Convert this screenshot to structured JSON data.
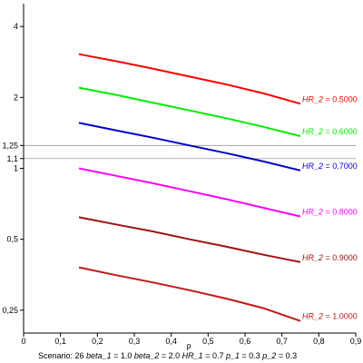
{
  "chart_data": {
    "type": "line",
    "xlabel": "ρ",
    "xlim": [
      0,
      0.9
    ],
    "ylim": [
      0.2,
      5
    ],
    "y_scale": "log",
    "x_ticks": [
      0,
      0.1,
      0.2,
      0.3,
      0.4,
      0.5,
      0.6,
      0.7,
      0.8,
      0.9
    ],
    "x_tick_labels": [
      "0",
      "0,1",
      "0,2",
      "0,3",
      "0,4",
      "0,5",
      "0,6",
      "0,7",
      "0,8",
      "0,9"
    ],
    "y_ticks": [
      0.25,
      0.5,
      1,
      1.1,
      1.25,
      2,
      4
    ],
    "y_tick_labels": [
      "0,25",
      "0,5",
      "1",
      "1,1",
      "1,25",
      "2",
      "4"
    ],
    "reference_lines": [
      1.1,
      1.25
    ],
    "series": [
      {
        "name": "HR_2",
        "value_label": "= 0.5000",
        "color": "#ff0000",
        "x": [
          0.15,
          0.25,
          0.35,
          0.45,
          0.55,
          0.65,
          0.75
        ],
        "y": [
          3.05,
          2.85,
          2.65,
          2.45,
          2.27,
          2.08,
          1.88
        ]
      },
      {
        "name": "HR_2",
        "value_label": "= 0.6000",
        "color": "#00ee00",
        "x": [
          0.15,
          0.25,
          0.35,
          0.45,
          0.55,
          0.65,
          0.75
        ],
        "y": [
          2.2,
          2.05,
          1.9,
          1.76,
          1.63,
          1.5,
          1.37
        ]
      },
      {
        "name": "HR_2",
        "value_label": "= 0.7000",
        "color": "#0000cc",
        "x": [
          0.15,
          0.25,
          0.35,
          0.45,
          0.55,
          0.65,
          0.75
        ],
        "y": [
          1.56,
          1.45,
          1.35,
          1.25,
          1.16,
          1.07,
          0.98
        ]
      },
      {
        "name": "HR_2",
        "value_label": "= 0.8000",
        "color": "#ff00ff",
        "x": [
          0.15,
          0.25,
          0.35,
          0.45,
          0.55,
          0.65,
          0.75
        ],
        "y": [
          1.0,
          0.93,
          0.865,
          0.8,
          0.74,
          0.68,
          0.625
        ]
      },
      {
        "name": "HR_2",
        "value_label": "= 0.9000",
        "color": "#a01010",
        "x": [
          0.15,
          0.25,
          0.35,
          0.45,
          0.55,
          0.65,
          0.75
        ],
        "y": [
          0.62,
          0.578,
          0.54,
          0.5,
          0.465,
          0.43,
          0.4
        ]
      },
      {
        "name": "HR_2",
        "value_label": "= 1.0000",
        "color": "#c01818",
        "x": [
          0.15,
          0.25,
          0.35,
          0.45,
          0.55,
          0.65,
          0.75
        ],
        "y": [
          0.38,
          0.352,
          0.328,
          0.304,
          0.28,
          0.255,
          0.225
        ]
      }
    ]
  },
  "footer": {
    "scenario_label": "Scenario:",
    "scenario_value": "26",
    "params": [
      {
        "name": "beta_1",
        "value": "1.0"
      },
      {
        "name": "beta_2",
        "value": "2.0"
      },
      {
        "name": "HR_1",
        "value": "0.7"
      },
      {
        "name": "p_1",
        "value": "0.3"
      },
      {
        "name": "p_2",
        "value": "0.3"
      }
    ]
  }
}
